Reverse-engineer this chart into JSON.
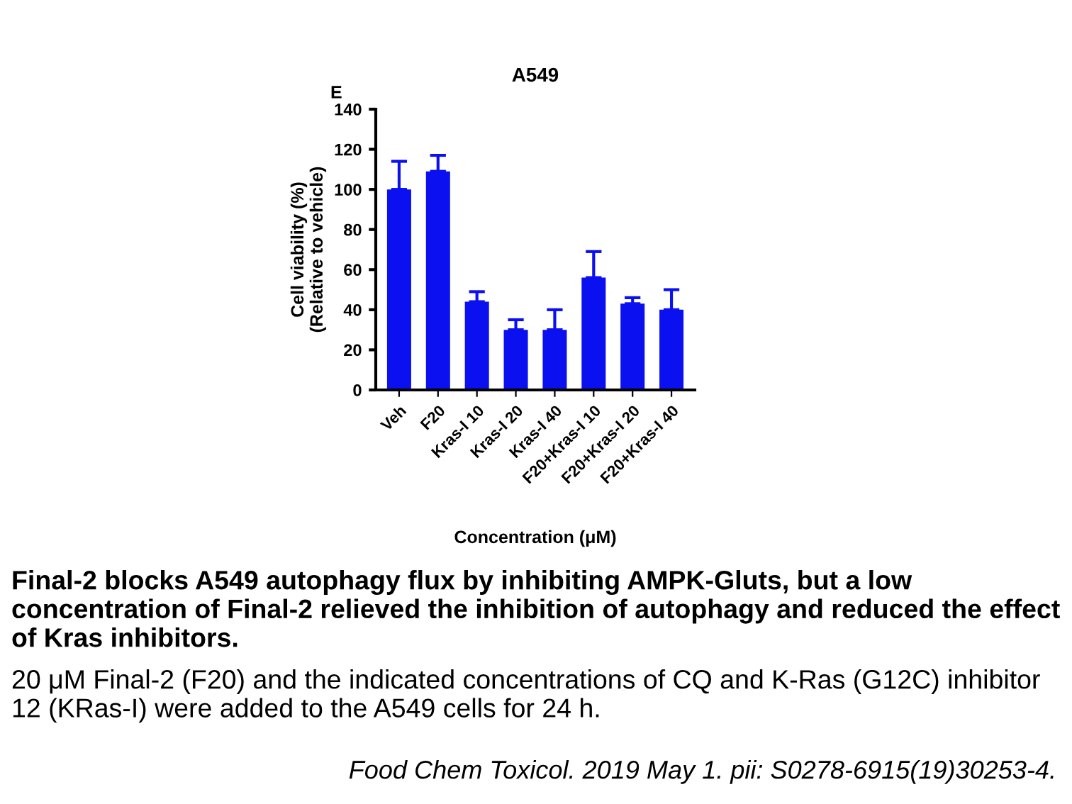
{
  "chart_data": {
    "type": "bar",
    "title": "A549",
    "xlabel": "Concentration (μM)",
    "ylabel": "Cell viability (%)\n(Relative to vehicle)",
    "categories": [
      "Veh",
      "F20",
      "Kras-I 10",
      "Kras-I 20",
      "Kras-I 40",
      "F20+Kras-I 10",
      "F20+Kras-I 20",
      "F20+Kras-I 40"
    ],
    "values": [
      100,
      109,
      44,
      30,
      30,
      56,
      43,
      40
    ],
    "errors": [
      [
        100,
        114
      ],
      [
        109,
        117
      ],
      [
        44,
        49
      ],
      [
        30,
        35
      ],
      [
        30,
        40
      ],
      [
        56,
        69
      ],
      [
        43,
        46
      ],
      [
        40,
        50
      ]
    ],
    "color": "#0a10f0",
    "ylim": [
      0,
      140
    ],
    "yticks": [
      0,
      20,
      40,
      60,
      80,
      100,
      120,
      140
    ],
    "grid": false,
    "annotations": [
      "E",
      "Final-2 blocks A549 autophagy flux by inhibiting AMPK-Gluts, but a low concentration of Final-2 relieved the inhibition of autophagy and reduced the effect of Kras inhibitors.",
      "20 μM Final-2 (F20) and the indicated concentrations of CQ and K-Ras (G12C) inhibitor 12 (KRas-I) were added to the A549 cells for 24 h.",
      "Food Chem Toxicol. 2019 May 1. pii: S0278-6915(19)30253-4."
    ]
  }
}
